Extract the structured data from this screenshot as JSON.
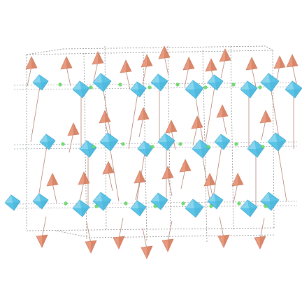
{
  "diagram": {
    "type": "crystal-structure-polyhedral",
    "description_label": "",
    "colors": {
      "background": "#ffffff",
      "octahedra_fill": "#5bc4e6",
      "octahedra_dark": "#3aa6cf",
      "tetrahedra_fill": "#e79a7f",
      "tetrahedra_dark": "#c9704f",
      "bond_line": "#b7867a",
      "hbond_line": "#9aa0a6",
      "green_atom": "#6ee06e",
      "cell_line": "#8c8c8c"
    },
    "layers": 3,
    "octahedra_per_layer": 12,
    "tetrahedra_count": 34,
    "unit_cells": 4
  }
}
